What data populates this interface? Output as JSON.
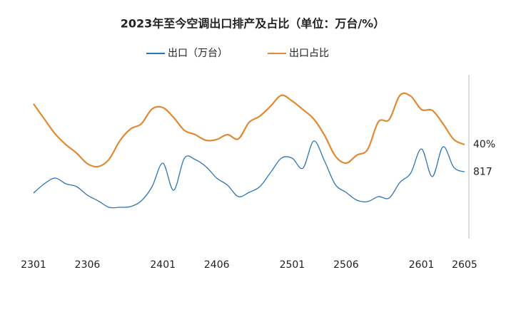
{
  "chart_data": {
    "type": "line",
    "title": "2023年至今空调出口排产及占比（单位：万台/%）",
    "categories": [
      "2301",
      null,
      null,
      null,
      null,
      "2306",
      null,
      null,
      null,
      null,
      null,
      null,
      "2401",
      null,
      null,
      null,
      null,
      "2406",
      null,
      null,
      null,
      null,
      null,
      null,
      "2501",
      null,
      null,
      null,
      null,
      "2506",
      null,
      null,
      null,
      null,
      null,
      null,
      "2601",
      null,
      null,
      null,
      "2605"
    ],
    "ylim": [
      0,
      2000
    ],
    "y2lim": [
      10,
      60
    ],
    "legend": "top",
    "series": [
      {
        "name": "出口（万台）",
        "color": "#2e75b6",
        "values": [
          520,
          650,
          730,
          650,
          610,
          490,
          410,
          320,
          320,
          330,
          410,
          610,
          940,
          560,
          1010,
          990,
          890,
          730,
          630,
          470,
          530,
          610,
          810,
          1010,
          1010,
          870,
          1250,
          970,
          640,
          530,
          420,
          400,
          470,
          450,
          670,
          800,
          1140,
          750,
          1170,
          880,
          817
        ]
      },
      {
        "name": "出口占比",
        "color": "#e08a35",
        "axis": "y2",
        "values": [
          54.3,
          49,
          43.8,
          40,
          37,
          33.3,
          32.3,
          34.8,
          41.3,
          45.5,
          47.3,
          52.5,
          53,
          49.5,
          45,
          43.5,
          41.5,
          41.8,
          43.5,
          42,
          47.8,
          50,
          53.5,
          57.3,
          55.3,
          52.3,
          49,
          43.3,
          36,
          33.5,
          36.3,
          38.3,
          48,
          48.8,
          57.3,
          57,
          52.3,
          52,
          47.3,
          41.8,
          40
        ],
        "value_labels": [
          null,
          null,
          null,
          null,
          null,
          null,
          null,
          null,
          null,
          null,
          null,
          null,
          null,
          null,
          null,
          null,
          null,
          null,
          null,
          null,
          null,
          null,
          null,
          null,
          null,
          null,
          null,
          null,
          null,
          null,
          null,
          null,
          null,
          null,
          null,
          null,
          null,
          null,
          null,
          null,
          "40%"
        ]
      }
    ]
  }
}
